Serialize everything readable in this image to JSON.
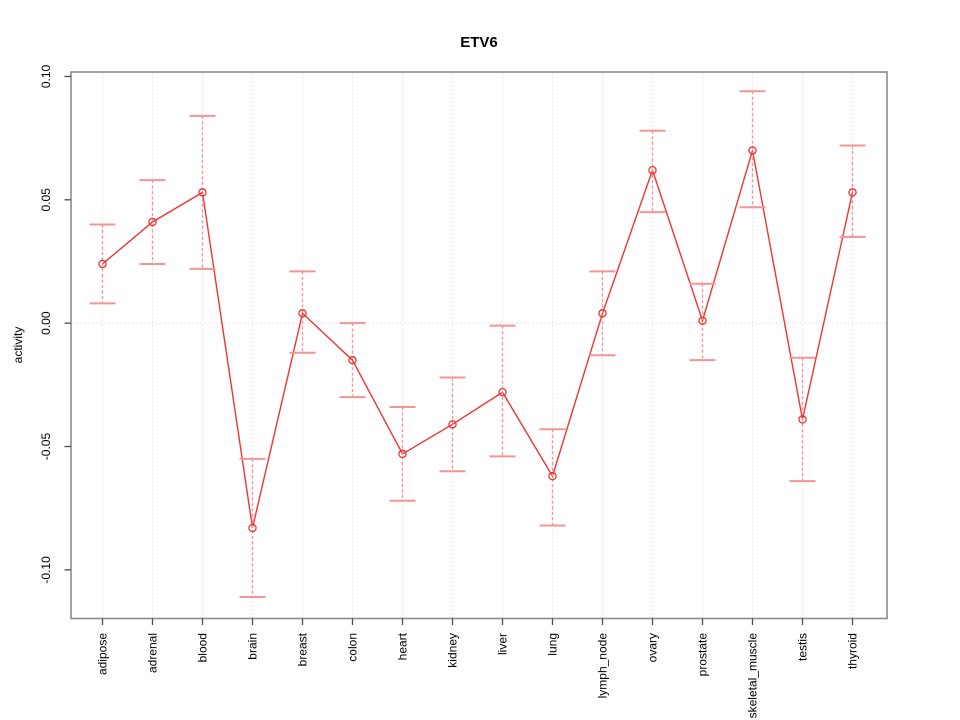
{
  "chart_data": {
    "type": "line",
    "title": "ETV6",
    "ylabel": "activity",
    "xlabel": "",
    "categories": [
      "adipose",
      "adrenal",
      "blood",
      "brain",
      "breast",
      "colon",
      "heart",
      "kidney",
      "liver",
      "lung",
      "lymph_node",
      "ovary",
      "prostate",
      "skeletal_muscle",
      "testis",
      "thyroid"
    ],
    "series": [
      {
        "name": "activity",
        "values": [
          0.024,
          0.041,
          0.053,
          -0.083,
          0.004,
          -0.015,
          -0.053,
          -0.041,
          -0.028,
          -0.062,
          0.004,
          0.062,
          0.001,
          0.07,
          -0.039,
          0.053
        ],
        "lower": [
          0.008,
          0.024,
          0.022,
          -0.111,
          -0.012,
          -0.03,
          -0.072,
          -0.06,
          -0.054,
          -0.082,
          -0.013,
          0.045,
          -0.015,
          0.047,
          -0.064,
          0.035
        ],
        "upper": [
          0.04,
          0.058,
          0.084,
          -0.055,
          0.021,
          0.0,
          -0.034,
          -0.022,
          -0.001,
          -0.043,
          0.021,
          0.078,
          0.016,
          0.094,
          -0.014,
          0.072
        ]
      }
    ],
    "ylim": [
      -0.1197,
      0.1018
    ],
    "yticks": [
      0.1,
      0.05,
      0.0,
      -0.05,
      -0.1
    ],
    "ytick_labels": [
      "0.10",
      "0.05",
      "0.00",
      "-0.05",
      "-0.10"
    ],
    "grid": "dotted vertical line at each category; dotted horizontal line at y=0",
    "legend": "none",
    "marker": "open-circle",
    "error_bars": "dashed vertical line with horizontal caps",
    "colors": {
      "line": "#f03333",
      "marker": "#f03333",
      "error_bar": "#f59494",
      "grid": "#d6d6d6",
      "box": "#8c8c8c",
      "tick": "#4d4d4d",
      "text": "#000000",
      "background": "#ffffff"
    }
  }
}
